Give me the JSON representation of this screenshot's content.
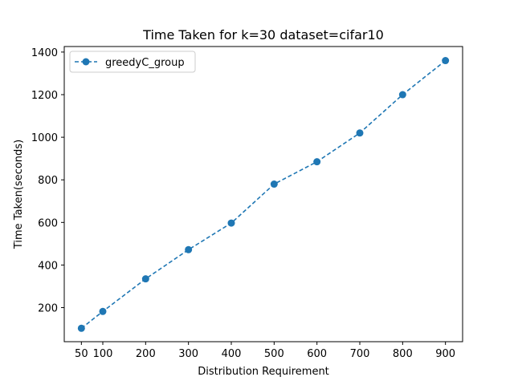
{
  "chart_data": {
    "type": "line",
    "title": "Time Taken for k=30 dataset=cifar10",
    "xlabel": "Distribution Requirement",
    "ylabel": "Time Taken(seconds)",
    "x": [
      50,
      100,
      200,
      300,
      400,
      500,
      600,
      700,
      800,
      900
    ],
    "xticks": [
      50,
      100,
      200,
      300,
      400,
      500,
      600,
      700,
      800,
      900
    ],
    "yticks": [
      200,
      400,
      600,
      800,
      1000,
      1200,
      1400
    ],
    "xlim": [
      10,
      940
    ],
    "ylim": [
      40,
      1426
    ],
    "grid": false,
    "legend_position": "top-left",
    "series": [
      {
        "name": "greedyC_group",
        "color": "#1f77b4",
        "line_style": "dashed",
        "marker": "circle",
        "values": [
          103,
          182,
          335,
          472,
          597,
          780,
          885,
          1020,
          1200,
          1360
        ]
      }
    ]
  }
}
